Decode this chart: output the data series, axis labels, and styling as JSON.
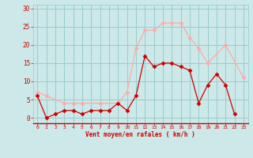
{
  "x": [
    0,
    1,
    2,
    3,
    4,
    5,
    6,
    7,
    8,
    9,
    10,
    11,
    12,
    13,
    14,
    15,
    16,
    17,
    18,
    19,
    20,
    21,
    22,
    23
  ],
  "y_moyen": [
    6,
    0,
    1,
    2,
    2,
    1,
    2,
    2,
    2,
    4,
    2,
    6,
    17,
    14,
    15,
    15,
    14,
    13,
    4,
    9,
    12,
    9,
    1,
    null
  ],
  "y_rafales": [
    7,
    6,
    null,
    4,
    4,
    4,
    null,
    4,
    null,
    4,
    7,
    19,
    24,
    24,
    26,
    26,
    26,
    22,
    19,
    15,
    null,
    20,
    null,
    11
  ],
  "color_moyen": "#cc0000",
  "color_rafales": "#ffaaaa",
  "bg_color": "#cce8e8",
  "grid_color": "#99cccc",
  "xlabel": "Vent moyen/en rafales ( km/h )",
  "xlabel_color": "#cc0000",
  "ylabel_color": "#cc0000",
  "yticks": [
    0,
    5,
    10,
    15,
    20,
    25,
    30
  ],
  "ylim": [
    -1.5,
    31
  ],
  "xlim": [
    -0.5,
    23.5
  ]
}
